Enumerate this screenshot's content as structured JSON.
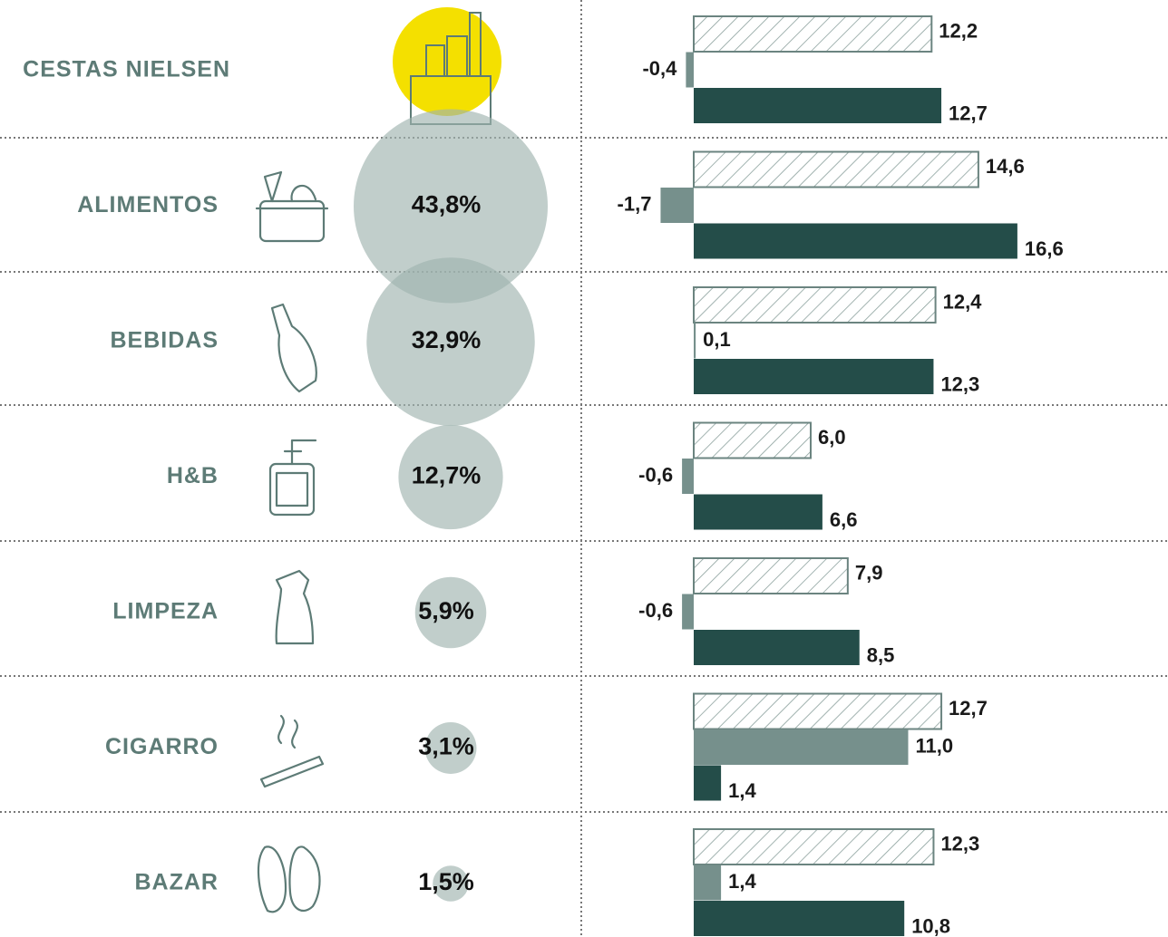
{
  "chart_data": {
    "type": "bar",
    "orientation": "horizontal",
    "categories": [
      "CESTAS NIELSEN",
      "ALIMENTOS",
      "BEBIDAS",
      "H&B",
      "LIMPEZA",
      "CIGARRO",
      "BAZAR"
    ],
    "shares": [
      null,
      43.8,
      32.9,
      12.7,
      5.9,
      3.1,
      1.5
    ],
    "share_labels": [
      null,
      "43,8%",
      "32,9%",
      "12,7%",
      "5,9%",
      "3,1%",
      "1,5%"
    ],
    "share_color": "#9fb3af",
    "xlim": [
      -2,
      24
    ],
    "series": [
      {
        "color": "#6b8480",
        "hatched": true,
        "values": [
          12.2,
          14.6,
          12.4,
          6.0,
          7.9,
          12.7,
          12.3
        ],
        "value_labels": [
          "12,2",
          "14,6",
          "12,4",
          "6,0",
          "7,9",
          "12,7",
          "12,3"
        ]
      },
      {
        "color": "#76908c",
        "values": [
          -0.4,
          -1.7,
          0.1,
          -0.6,
          -0.6,
          11.0,
          1.4
        ],
        "value_labels": [
          "-0,4",
          "-1,7",
          "0,1",
          "-0,6",
          "-0,6",
          "11,0",
          "1,4"
        ]
      },
      {
        "color": "#244d49",
        "values": [
          12.7,
          16.6,
          12.3,
          6.6,
          8.5,
          1.4,
          10.8
        ],
        "value_labels": [
          "12,7",
          "16,6",
          "12,3",
          "6,6",
          "8,5",
          "1,4",
          "10,8"
        ]
      }
    ]
  }
}
